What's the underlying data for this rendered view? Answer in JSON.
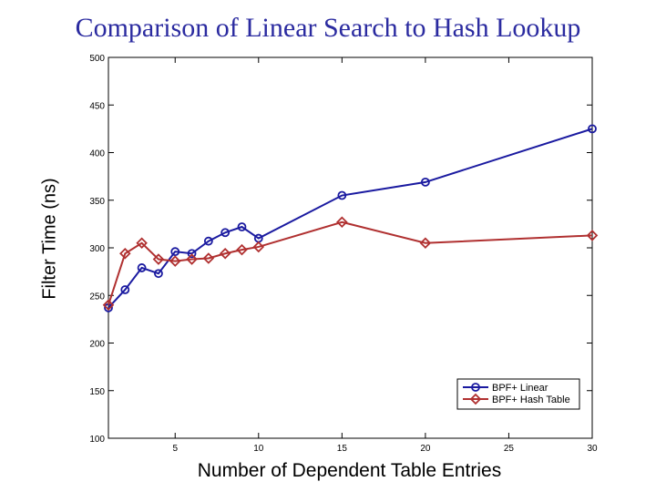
{
  "chart_data": {
    "type": "line",
    "title": "Comparison of Linear Search to Hash Lookup",
    "xlabel": "Number of Dependent Table Entries",
    "ylabel": "Filter Time (ns)",
    "xlim": [
      1,
      30
    ],
    "ylim": [
      100,
      500
    ],
    "xticks": [
      5,
      10,
      15,
      20,
      25,
      30
    ],
    "yticks": [
      100,
      150,
      200,
      250,
      300,
      350,
      400,
      450,
      500
    ],
    "grid": false,
    "legend_position": "bottom-right",
    "series": [
      {
        "name": "BPF+ Linear",
        "color": "#1a1aa0",
        "marker": "circle",
        "x": [
          1,
          2,
          3,
          4,
          5,
          6,
          7,
          8,
          9,
          10,
          15,
          20,
          30
        ],
        "y": [
          237,
          256,
          279,
          273,
          296,
          294,
          307,
          316,
          322,
          310,
          355,
          369,
          425
        ]
      },
      {
        "name": "BPF+ Hash Table",
        "color": "#b03030",
        "marker": "diamond",
        "x": [
          1,
          2,
          3,
          4,
          5,
          6,
          7,
          8,
          9,
          10,
          15,
          20,
          30
        ],
        "y": [
          240,
          294,
          305,
          288,
          286,
          288,
          289,
          294,
          298,
          301,
          327,
          305,
          313
        ]
      }
    ]
  }
}
